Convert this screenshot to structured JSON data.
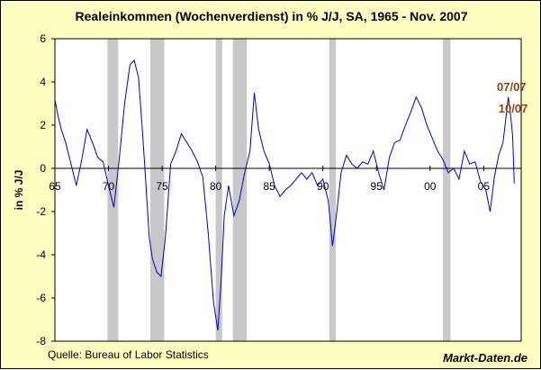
{
  "chart_data": {
    "type": "line",
    "title": "Realeinkommen (Wochenverdienst) in % J/J, SA, 1965 - Nov. 2007",
    "ylabel": "in % J/J",
    "xlabel": "",
    "xlim": [
      1965,
      2008.5
    ],
    "ylim": [
      -8,
      6
    ],
    "x_ticks": [
      {
        "v": 1965,
        "label": "65"
      },
      {
        "v": 1970,
        "label": "70"
      },
      {
        "v": 1975,
        "label": "75"
      },
      {
        "v": 1980,
        "label": "80"
      },
      {
        "v": 1985,
        "label": "85"
      },
      {
        "v": 1990,
        "label": "90"
      },
      {
        "v": 1995,
        "label": "95"
      },
      {
        "v": 2000,
        "label": "00"
      },
      {
        "v": 2005,
        "label": "05"
      }
    ],
    "y_ticks": [
      6,
      4,
      2,
      0,
      -2,
      -4,
      -6,
      -8
    ],
    "grid": false,
    "colors": {
      "line": "#0000cc",
      "recession": "#c8c8c8",
      "annotation": "#8b4513",
      "background": "#ffffc2",
      "plot": "#ffffff"
    },
    "recessions": [
      [
        1969.9,
        1970.9
      ],
      [
        1973.9,
        1975.2
      ],
      [
        1980.0,
        1980.6
      ],
      [
        1981.6,
        1982.9
      ],
      [
        1990.6,
        1991.2
      ],
      [
        2001.2,
        2001.9
      ]
    ],
    "series": [
      {
        "x": [
          1965.0,
          1965.3,
          1965.6,
          1966.0,
          1966.5,
          1967.0,
          1967.5,
          1968.0,
          1968.5,
          1969.0,
          1969.5,
          1970.0,
          1970.5,
          1971.0,
          1971.5,
          1972.0,
          1972.4,
          1972.8,
          1973.2,
          1973.5,
          1973.8,
          1974.1,
          1974.5,
          1974.9,
          1975.3,
          1975.8,
          1976.3,
          1976.8,
          1977.3,
          1977.8,
          1978.3,
          1978.8,
          1979.3,
          1979.8,
          1980.2,
          1980.5,
          1980.8,
          1981.2,
          1981.7,
          1982.2,
          1982.7,
          1983.2,
          1983.6,
          1984.0,
          1984.5,
          1985.0,
          1985.5,
          1986.0,
          1986.5,
          1987.0,
          1987.5,
          1988.0,
          1988.5,
          1989.0,
          1989.5,
          1990.0,
          1990.5,
          1990.9,
          1991.3,
          1991.7,
          1992.2,
          1992.7,
          1993.2,
          1993.7,
          1994.2,
          1994.7,
          1995.2,
          1995.7,
          1996.2,
          1996.7,
          1997.2,
          1997.7,
          1998.2,
          1998.7,
          1999.2,
          1999.7,
          2000.2,
          2000.7,
          2001.2,
          2001.7,
          2002.2,
          2002.7,
          2003.2,
          2003.7,
          2004.2,
          2004.7,
          2005.2,
          2005.6,
          2006.0,
          2006.4,
          2006.8,
          2007.0,
          2007.3,
          2007.5,
          2007.7,
          2007.85
        ],
        "y": [
          3.2,
          2.4,
          1.8,
          1.2,
          0.2,
          -0.8,
          0.4,
          1.8,
          1.2,
          0.5,
          0.3,
          -0.8,
          -1.8,
          0.4,
          3.0,
          4.8,
          5.0,
          4.2,
          1.5,
          -0.8,
          -3.2,
          -4.2,
          -4.8,
          -5.0,
          -3.2,
          0.2,
          0.8,
          1.6,
          1.2,
          0.8,
          0.3,
          -0.4,
          -3.0,
          -6.2,
          -7.5,
          -5.2,
          -2.2,
          -0.8,
          -2.2,
          -1.5,
          -0.2,
          0.8,
          3.5,
          1.8,
          0.8,
          0.2,
          -0.8,
          -1.3,
          -1.0,
          -0.8,
          -0.5,
          -0.2,
          -0.5,
          -0.2,
          -0.8,
          -0.5,
          -1.5,
          -3.6,
          -2.0,
          -0.2,
          0.6,
          0.2,
          0.0,
          0.3,
          0.2,
          0.8,
          -0.2,
          -1.0,
          0.5,
          1.2,
          1.3,
          2.0,
          2.6,
          3.3,
          2.8,
          2.0,
          1.4,
          0.8,
          0.4,
          -0.2,
          0.0,
          -0.5,
          0.8,
          0.2,
          0.3,
          -0.6,
          -1.0,
          -2.0,
          -0.4,
          0.6,
          1.2,
          2.0,
          3.3,
          2.5,
          1.5,
          -0.7
        ]
      }
    ],
    "annotations": [
      {
        "label": "07/07",
        "x": 2007.6,
        "y": 3.5
      },
      {
        "label": "10/07",
        "x": 2007.75,
        "y": 2.5
      }
    ]
  },
  "footer": {
    "source": "Quelle: Bureau of Labor Statistics",
    "brand": "Markt-Daten.de"
  }
}
